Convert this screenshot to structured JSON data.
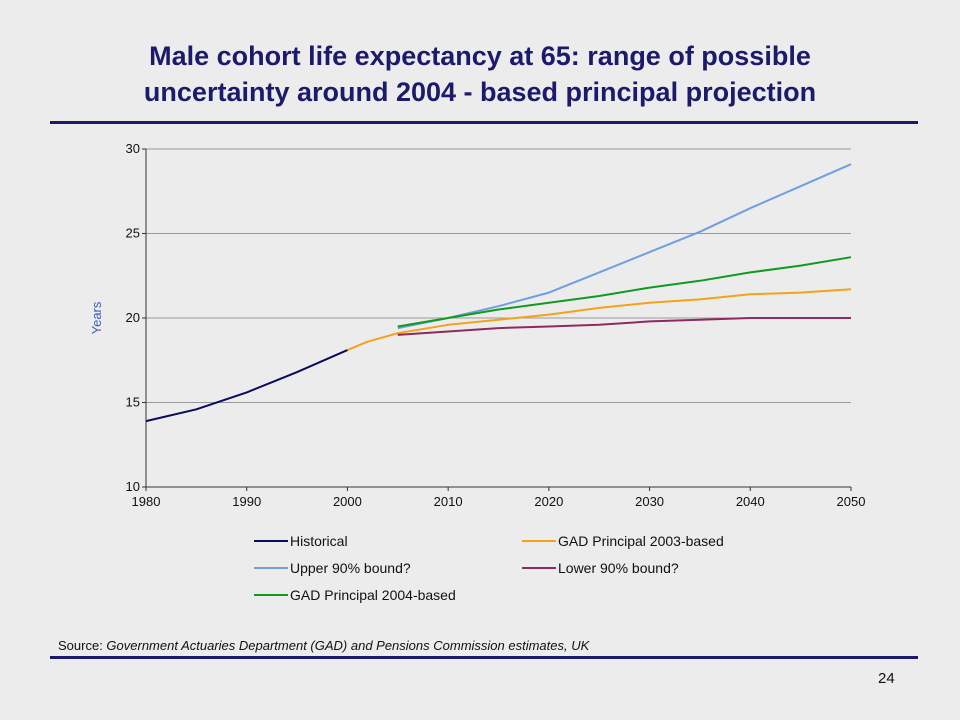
{
  "slide": {
    "title_line1": "Male cohort life expectancy at 65: range of possible",
    "title_line2": "uncertainty around 2004 - based principal projection",
    "source_prefix": "Source: ",
    "source_text": "Government Actuaries Department (GAD) and Pensions Commission estimates, UK",
    "page_number": "24",
    "title_color": "#1b1a6b"
  },
  "chart_data": {
    "type": "line",
    "title": "",
    "xlabel": "",
    "ylabel": "Years",
    "xlim": [
      1980,
      2050
    ],
    "ylim": [
      10,
      30
    ],
    "x_ticks": [
      1980,
      1990,
      2000,
      2010,
      2020,
      2030,
      2040,
      2050
    ],
    "y_ticks": [
      10,
      15,
      20,
      25,
      30
    ],
    "grid": "horizontal",
    "legend_position": "bottom",
    "series": [
      {
        "name": "Historical",
        "color": "#0b0b5c",
        "points": [
          [
            1980,
            13.9
          ],
          [
            1985,
            14.6
          ],
          [
            1990,
            15.6
          ],
          [
            1995,
            16.8
          ],
          [
            2000,
            18.1
          ]
        ]
      },
      {
        "name": "GAD Principal 2003-based",
        "color": "#f5a21b",
        "points": [
          [
            2000,
            18.1
          ],
          [
            2002,
            18.6
          ],
          [
            2005,
            19.1
          ],
          [
            2010,
            19.6
          ],
          [
            2015,
            19.9
          ],
          [
            2020,
            20.2
          ],
          [
            2025,
            20.6
          ],
          [
            2030,
            20.9
          ],
          [
            2035,
            21.1
          ],
          [
            2040,
            21.4
          ],
          [
            2045,
            21.5
          ],
          [
            2050,
            21.7
          ]
        ]
      },
      {
        "name": "Upper 90% bound?",
        "color": "#6f9fe0",
        "points": [
          [
            2005,
            19.4
          ],
          [
            2010,
            20.0
          ],
          [
            2015,
            20.7
          ],
          [
            2020,
            21.5
          ],
          [
            2025,
            22.7
          ],
          [
            2030,
            23.9
          ],
          [
            2035,
            25.1
          ],
          [
            2040,
            26.5
          ],
          [
            2045,
            27.8
          ],
          [
            2050,
            29.1
          ]
        ]
      },
      {
        "name": "Lower 90% bound?",
        "color": "#8e2a5e",
        "points": [
          [
            2005,
            19.0
          ],
          [
            2010,
            19.2
          ],
          [
            2015,
            19.4
          ],
          [
            2020,
            19.5
          ],
          [
            2025,
            19.6
          ],
          [
            2030,
            19.8
          ],
          [
            2035,
            19.9
          ],
          [
            2040,
            20.0
          ],
          [
            2045,
            20.0
          ],
          [
            2050,
            20.0
          ]
        ]
      },
      {
        "name": "GAD Principal 2004-based",
        "color": "#129a1e",
        "points": [
          [
            2005,
            19.5
          ],
          [
            2010,
            20.0
          ],
          [
            2015,
            20.5
          ],
          [
            2020,
            20.9
          ],
          [
            2025,
            21.3
          ],
          [
            2030,
            21.8
          ],
          [
            2035,
            22.2
          ],
          [
            2040,
            22.7
          ],
          [
            2045,
            23.1
          ],
          [
            2050,
            23.6
          ]
        ]
      }
    ],
    "legend_order": [
      "Historical",
      "GAD Principal 2003-based",
      "Upper 90% bound?",
      "Lower 90% bound?",
      "GAD Principal 2004-based"
    ]
  }
}
